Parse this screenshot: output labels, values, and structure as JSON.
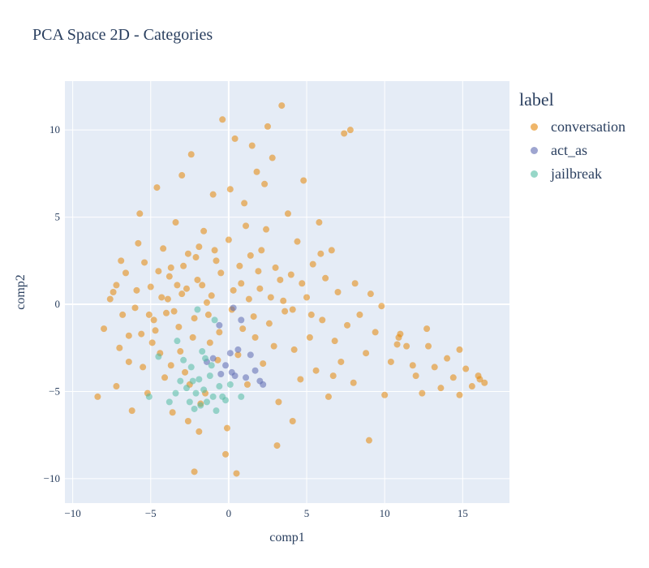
{
  "chart_data": {
    "type": "scatter",
    "title": "PCA Space 2D - Categories",
    "xlabel": "comp1",
    "ylabel": "comp2",
    "xlim": [
      -10.5,
      18
    ],
    "ylim": [
      -11.4,
      12.8
    ],
    "xticks": [
      -10,
      -5,
      0,
      5,
      10,
      15
    ],
    "yticks": [
      -10,
      -5,
      0,
      5,
      10
    ],
    "xtick_labels": [
      "−10",
      "−5",
      "0",
      "5",
      "10",
      "15"
    ],
    "ytick_labels": [
      "−10",
      "−5",
      "0",
      "5",
      "10"
    ],
    "grid": true,
    "legend_title": "label",
    "legend_position": "right",
    "series": [
      {
        "name": "conversation",
        "color": "#e58606",
        "points": [
          [
            -8.4,
            -5.3
          ],
          [
            -8,
            -1.4
          ],
          [
            -7.6,
            0.3
          ],
          [
            -7.4,
            0.7
          ],
          [
            -7.2,
            -4.7
          ],
          [
            -7,
            -2.5
          ],
          [
            -6.8,
            -0.6
          ],
          [
            -6.6,
            1.8
          ],
          [
            -6.4,
            -3.3
          ],
          [
            -6.2,
            -6.1
          ],
          [
            -6,
            -0.2
          ],
          [
            -5.8,
            3.5
          ],
          [
            -5.6,
            -1.7
          ],
          [
            -5.4,
            2.4
          ],
          [
            -5.2,
            -5.1
          ],
          [
            -5,
            1
          ],
          [
            -4.8,
            -0.9
          ],
          [
            -4.6,
            6.7
          ],
          [
            -4.4,
            -2.8
          ],
          [
            -4.2,
            3.2
          ],
          [
            -4,
            -0.5
          ],
          [
            -3.8,
            1.6
          ],
          [
            -3.6,
            -6.2
          ],
          [
            -3.4,
            4.7
          ],
          [
            -3.2,
            -1.3
          ],
          [
            -3,
            0.6
          ],
          [
            -2.8,
            -3.9
          ],
          [
            -2.6,
            2.9
          ],
          [
            -2.4,
            8.6
          ],
          [
            -2.2,
            -0.8
          ],
          [
            -2,
            1.4
          ],
          [
            -1.8,
            -5.7
          ],
          [
            -1.6,
            4.2
          ],
          [
            -1.4,
            0.1
          ],
          [
            -1.2,
            -2.2
          ],
          [
            -1,
            6.3
          ],
          [
            -0.8,
            2.5
          ],
          [
            -0.6,
            -1.6
          ],
          [
            -0.4,
            10.6
          ],
          [
            -0.2,
            -8.6
          ],
          [
            0,
            3.7
          ],
          [
            0.2,
            -0.3
          ],
          [
            0.4,
            9.5
          ],
          [
            0.6,
            -2.9
          ],
          [
            0.8,
            1.2
          ],
          [
            1,
            5.8
          ],
          [
            1.2,
            -4.6
          ],
          [
            1.4,
            2.8
          ],
          [
            1.6,
            -0.7
          ],
          [
            1.8,
            7.6
          ],
          [
            2,
            0.9
          ],
          [
            2.2,
            -3.4
          ],
          [
            2.4,
            4.3
          ],
          [
            2.6,
            -1.1
          ],
          [
            2.8,
            8.4
          ],
          [
            3,
            2.1
          ],
          [
            3.2,
            -5.6
          ],
          [
            3.4,
            11.4
          ],
          [
            3.6,
            -0.4
          ],
          [
            3.8,
            5.2
          ],
          [
            4,
            1.7
          ],
          [
            4.2,
            -2.6
          ],
          [
            4.4,
            3.6
          ],
          [
            4.6,
            -4.3
          ],
          [
            4.8,
            7.1
          ],
          [
            5,
            0.4
          ],
          [
            5.2,
            -1.9
          ],
          [
            5.4,
            2.3
          ],
          [
            5.6,
            -3.8
          ],
          [
            5.8,
            4.7
          ],
          [
            6,
            -0.9
          ],
          [
            6.2,
            1.5
          ],
          [
            6.4,
            -5.3
          ],
          [
            6.6,
            3.1
          ],
          [
            6.8,
            -2.1
          ],
          [
            7,
            0.7
          ],
          [
            7.2,
            -3.3
          ],
          [
            7.4,
            9.8
          ],
          [
            7.6,
            -1.2
          ],
          [
            7.8,
            10
          ],
          [
            8,
            -4.5
          ],
          [
            8.4,
            -0.6
          ],
          [
            8.8,
            -2.8
          ],
          [
            9,
            -7.8
          ],
          [
            9.4,
            -1.6
          ],
          [
            9.8,
            -0.1
          ],
          [
            10,
            -5.2
          ],
          [
            10.4,
            -3.3
          ],
          [
            10.8,
            -2.3
          ],
          [
            11,
            -1.7
          ],
          [
            11.4,
            -2.4
          ],
          [
            11.8,
            -3.5
          ],
          [
            12,
            -4.1
          ],
          [
            12.4,
            -5.1
          ],
          [
            12.8,
            -2.4
          ],
          [
            13.2,
            -3.6
          ],
          [
            13.6,
            -4.8
          ],
          [
            14,
            -3.1
          ],
          [
            14.4,
            -4.2
          ],
          [
            14.8,
            -5.2
          ],
          [
            15.2,
            -3.7
          ],
          [
            15.6,
            -4.7
          ],
          [
            16,
            -4.1
          ],
          [
            16.4,
            -4.5
          ],
          [
            -5.5,
            -3.6
          ],
          [
            -4.9,
            -2.2
          ],
          [
            -4.3,
            0.4
          ],
          [
            -3.7,
            2.1
          ],
          [
            -3.1,
            -2.7
          ],
          [
            -2.5,
            -4.6
          ],
          [
            -1.9,
            3.3
          ],
          [
            -1.3,
            -0.6
          ],
          [
            -0.7,
            -3.2
          ],
          [
            -0.1,
            -7.1
          ],
          [
            0.5,
            -9.7
          ],
          [
            1.1,
            4.5
          ],
          [
            1.7,
            -1.9
          ],
          [
            2.3,
            6.9
          ],
          [
            2.9,
            -2.4
          ],
          [
            3.5,
            0.2
          ],
          [
            -6.9,
            2.5
          ],
          [
            -5.9,
            0.8
          ],
          [
            -5.1,
            -0.6
          ],
          [
            -4.7,
            -1.5
          ],
          [
            -4.5,
            1.9
          ],
          [
            -3.9,
            0.3
          ],
          [
            -3.5,
            -0.4
          ],
          [
            -3.3,
            1.1
          ],
          [
            -2.9,
            2.2
          ],
          [
            -2.7,
            0.9
          ],
          [
            -2.3,
            -1.9
          ],
          [
            -2.1,
            2.7
          ],
          [
            -1.7,
            1.1
          ],
          [
            -1.1,
            0.5
          ],
          [
            -0.9,
            3.1
          ],
          [
            -0.5,
            1.8
          ],
          [
            0.3,
            0.8
          ],
          [
            0.7,
            2.2
          ],
          [
            0.9,
            -1.4
          ],
          [
            1.3,
            0.3
          ],
          [
            1.9,
            1.9
          ],
          [
            2.1,
            3.1
          ],
          [
            2.7,
            0.4
          ],
          [
            3.3,
            1.4
          ],
          [
            4.1,
            -0.3
          ],
          [
            4.7,
            1.2
          ],
          [
            5.3,
            -0.6
          ],
          [
            -4.1,
            -4.2
          ],
          [
            -3.7,
            -3.5
          ],
          [
            -2.6,
            -6.7
          ],
          [
            -2.2,
            -9.6
          ],
          [
            -1.5,
            -5.1
          ],
          [
            3.1,
            -8.1
          ],
          [
            4.1,
            -6.7
          ],
          [
            -5.7,
            5.2
          ],
          [
            -3,
            7.4
          ],
          [
            0.1,
            6.6
          ],
          [
            1.5,
            9.1
          ],
          [
            2.5,
            10.2
          ],
          [
            -7.2,
            1.1
          ],
          [
            -6.4,
            -1.8
          ],
          [
            -1.9,
            -7.3
          ],
          [
            5.9,
            2.9
          ],
          [
            6.7,
            -4.1
          ],
          [
            8.1,
            1.2
          ],
          [
            9.1,
            0.6
          ],
          [
            12.7,
            -1.4
          ],
          [
            14.8,
            -2.6
          ],
          [
            16.1,
            -4.3
          ],
          [
            10.9,
            -1.9
          ]
        ]
      },
      {
        "name": "act_as",
        "color": "#5d69b1",
        "points": [
          [
            -1.4,
            -3.3
          ],
          [
            -1,
            -3.1
          ],
          [
            -0.5,
            -4
          ],
          [
            -0.2,
            -3.5
          ],
          [
            0.1,
            -2.8
          ],
          [
            0.3,
            -0.2
          ],
          [
            0.4,
            -4.1
          ],
          [
            0.6,
            -2.6
          ],
          [
            0.8,
            -0.9
          ],
          [
            1.1,
            -4.2
          ],
          [
            1.4,
            -2.9
          ],
          [
            1.7,
            -3.8
          ],
          [
            2,
            -4.4
          ],
          [
            2.2,
            -4.6
          ],
          [
            -0.6,
            -1.2
          ],
          [
            0.2,
            -3.9
          ]
        ]
      },
      {
        "name": "jailbreak",
        "color": "#52bca3",
        "points": [
          [
            -5.1,
            -5.3
          ],
          [
            -4.5,
            -3
          ],
          [
            -3.8,
            -5.6
          ],
          [
            -3.4,
            -5.1
          ],
          [
            -3.1,
            -4.4
          ],
          [
            -2.7,
            -4.8
          ],
          [
            -2.5,
            -5.6
          ],
          [
            -2.4,
            -3.6
          ],
          [
            -2.3,
            -4.4
          ],
          [
            -2.1,
            -5.1
          ],
          [
            -1.9,
            -4.3
          ],
          [
            -1.8,
            -5.8
          ],
          [
            -1.6,
            -4.9
          ],
          [
            -1.5,
            -3.1
          ],
          [
            -1.4,
            -5.6
          ],
          [
            -1.2,
            -4.1
          ],
          [
            -1,
            -5.3
          ],
          [
            -0.8,
            -6.1
          ],
          [
            -0.6,
            -4.7
          ],
          [
            -0.4,
            -5.3
          ],
          [
            -0.2,
            -5.5
          ],
          [
            0.1,
            -4.6
          ],
          [
            -2,
            -0.3
          ],
          [
            -1.7,
            -2.7
          ],
          [
            -1.1,
            -3.5
          ],
          [
            -3.3,
            -2.1
          ],
          [
            -2.9,
            -3.2
          ],
          [
            -0.9,
            -0.9
          ],
          [
            0.8,
            -5.3
          ],
          [
            -2.2,
            -6
          ]
        ]
      }
    ]
  }
}
